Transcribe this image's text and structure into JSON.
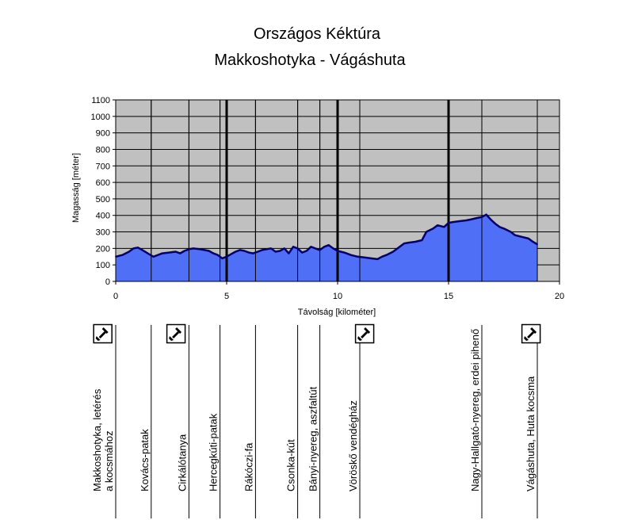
{
  "chart_data": {
    "type": "area",
    "title": "Országos Kéktúra",
    "subtitle": "Makkoshotyka - Vágáshuta",
    "xlabel": "Távolság [kilométer]",
    "ylabel": "Magasság [méter]",
    "xlim": [
      0,
      20
    ],
    "ylim": [
      0,
      1100
    ],
    "xticks": [
      "0",
      "5",
      "10",
      "15",
      "20"
    ],
    "yticks": [
      "0",
      "100",
      "200",
      "300",
      "400",
      "500",
      "600",
      "700",
      "800",
      "900",
      "1000",
      "1100"
    ],
    "grid": true,
    "colors": {
      "plot_bg": "#c0c0c0",
      "fill": "#4f6ff7",
      "line": "#00007a",
      "grid": "#000000"
    },
    "x": [
      0,
      0.3,
      0.6,
      0.8,
      1.0,
      1.2,
      1.5,
      1.7,
      1.9,
      2.1,
      2.4,
      2.7,
      2.9,
      3.1,
      3.3,
      3.5,
      3.8,
      4.0,
      4.2,
      4.4,
      4.6,
      4.8,
      5.0,
      5.2,
      5.4,
      5.6,
      5.8,
      6.0,
      6.2,
      6.4,
      6.6,
      6.8,
      7.0,
      7.2,
      7.4,
      7.6,
      7.8,
      8.0,
      8.2,
      8.4,
      8.6,
      8.8,
      9.0,
      9.2,
      9.4,
      9.6,
      9.8,
      10.0,
      10.3,
      10.6,
      10.9,
      11.2,
      11.5,
      11.8,
      12.0,
      12.2,
      12.5,
      12.8,
      13.0,
      13.2,
      13.5,
      13.8,
      14.0,
      14.3,
      14.5,
      14.8,
      15.0,
      15.2,
      15.5,
      15.8,
      16.0,
      16.3,
      16.5,
      16.7,
      16.9,
      17.1,
      17.3,
      17.5,
      17.8,
      18.0,
      18.3,
      18.6,
      18.8,
      19.0
    ],
    "y": [
      150,
      160,
      180,
      200,
      205,
      190,
      165,
      150,
      160,
      170,
      175,
      180,
      170,
      185,
      195,
      200,
      195,
      190,
      185,
      170,
      160,
      140,
      150,
      165,
      180,
      190,
      185,
      175,
      170,
      180,
      190,
      195,
      200,
      180,
      185,
      200,
      170,
      210,
      200,
      175,
      185,
      210,
      200,
      190,
      210,
      220,
      200,
      185,
      175,
      160,
      150,
      145,
      140,
      135,
      150,
      160,
      180,
      210,
      230,
      235,
      240,
      250,
      300,
      320,
      340,
      330,
      355,
      360,
      365,
      370,
      375,
      385,
      390,
      405,
      375,
      350,
      330,
      320,
      300,
      280,
      270,
      260,
      240,
      225
    ],
    "waypoint_labels": [
      "Makkoshotyka, letérés a kocsmához",
      "Kovács-patak",
      "Cirkálótanya",
      "Hercegkúti-patak",
      "Rákóczi-fa",
      "Csonka-kút",
      "Bányi-nyereg, aszfaltút",
      "Vöröskő vendégház",
      "Nagy-Hallgató-nyereg, erdei pihenő",
      "Vágáshuta, Huta kocsma"
    ],
    "waypoint_label_lines": [
      [
        "Makkoshotyka, letérés",
        "a kocsmához"
      ],
      [
        "Kovács-patak"
      ],
      [
        "Cirkálótanya"
      ],
      [
        "Hercegkúti-patak"
      ],
      [
        "Rákóczi-fa"
      ],
      [
        "Csonka-kút"
      ],
      [
        "Bányi-nyereg, aszfaltút"
      ],
      [
        "Vöröskő vendégház"
      ],
      [
        "Nagy-Hallgató-nyereg, erdei pihenő"
      ],
      [
        "Vágáshuta, Huta kocsma"
      ]
    ],
    "waypoint_km": [
      0,
      1.6,
      3.3,
      4.7,
      6.3,
      8.2,
      9.2,
      11.0,
      16.5,
      19.0
    ],
    "stamp_km": [
      -0.6,
      2.7,
      11.2,
      18.7
    ],
    "stamp_icon": "stamp-icon"
  }
}
